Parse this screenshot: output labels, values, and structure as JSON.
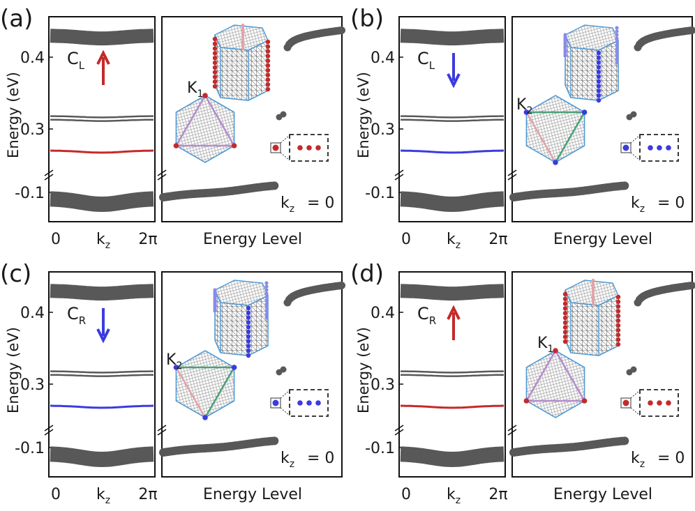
{
  "colors": {
    "band": "#585858",
    "red": "#c42a2a",
    "blue": "#3b3be0",
    "frame": "#111111",
    "hex_edge": "#4f9ad4",
    "tri_green": "#4aa07a",
    "tri_violet": "#b48ccc",
    "tri_pink": "#e3a2a8"
  },
  "chart_data": {
    "type": "line",
    "figure_kind": "four-panel band structure with energy-level spectra",
    "shared": {
      "ylabel": "Energy (eV)",
      "yticks": [
        "0.4",
        "0.3",
        "-0.1"
      ],
      "band_xlabel": "k_z",
      "band_xticks": [
        "0",
        "k",
        "2π"
      ],
      "kz_sub": "z",
      "spectrum_xlabel": "Energy Level",
      "kz_eq": "= 0",
      "kz_letter": "k",
      "axis_break": "broken y-axis between -0.1 and 0.3",
      "bands_eV": {
        "upper_band": 0.43,
        "twin_bands": [
          0.318,
          0.313
        ],
        "chiral_band": 0.27,
        "lower_band": -0.11
      }
    },
    "panels": [
      {
        "label": "(a)",
        "chirality": "C",
        "chirality_sub": "L",
        "arrow": "up",
        "color": "red",
        "valley": "K",
        "valley_sub": "1",
        "triangle": "up"
      },
      {
        "label": "(b)",
        "chirality": "C",
        "chirality_sub": "L",
        "arrow": "down",
        "color": "blue",
        "valley": "K",
        "valley_sub": "2",
        "triangle": "down"
      },
      {
        "label": "(c)",
        "chirality": "C",
        "chirality_sub": "R",
        "arrow": "down",
        "color": "blue",
        "valley": "K",
        "valley_sub": "2",
        "triangle": "down"
      },
      {
        "label": "(d)",
        "chirality": "C",
        "chirality_sub": "R",
        "arrow": "up",
        "color": "red",
        "valley": "K",
        "valley_sub": "1",
        "triangle": "up"
      }
    ]
  }
}
